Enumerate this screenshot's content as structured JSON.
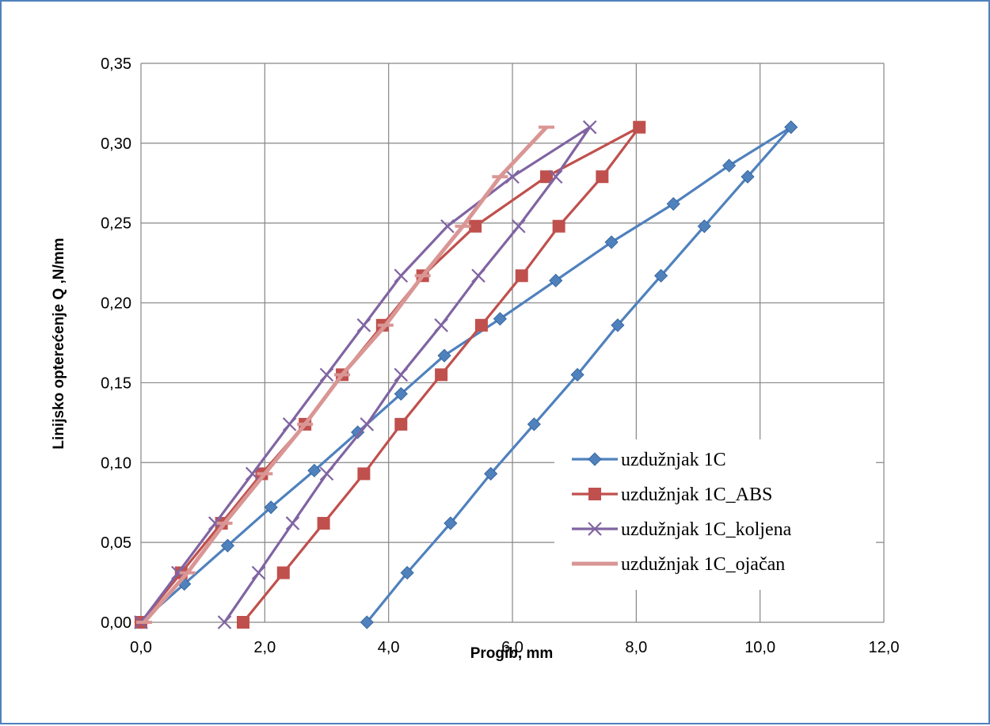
{
  "chart_data": {
    "type": "line",
    "title": "",
    "xlabel": "Progib, mm",
    "ylabel": "Linijsko opterećenje Q ,N/mm",
    "xlim": [
      0,
      12
    ],
    "ylim": [
      0,
      0.35
    ],
    "x_ticks": [
      "0,0",
      "2,0",
      "4,0",
      "6,0",
      "8,0",
      "10,0",
      "12,0"
    ],
    "y_ticks": [
      "0,00",
      "0,05",
      "0,10",
      "0,15",
      "0,20",
      "0,25",
      "0,30",
      "0,35"
    ],
    "grid": true,
    "legend_position": "right",
    "series": [
      {
        "name": "uzdužnjak 1C",
        "color": "#4f81bd",
        "marker": "diamond",
        "x": [
          0,
          0.7,
          1.4,
          2.1,
          2.8,
          3.5,
          4.2,
          4.9,
          5.8,
          6.7,
          7.6,
          8.6,
          9.5,
          10.5,
          9.8,
          9.1,
          8.4,
          7.7,
          7.05,
          6.35,
          5.65,
          5.0,
          4.3,
          3.65
        ],
        "y": [
          0,
          0.024,
          0.048,
          0.072,
          0.095,
          0.119,
          0.143,
          0.167,
          0.19,
          0.214,
          0.238,
          0.262,
          0.286,
          0.31,
          0.279,
          0.248,
          0.217,
          0.186,
          0.155,
          0.124,
          0.093,
          0.062,
          0.031,
          0
        ]
      },
      {
        "name": "uzdužnjak 1C_ABS",
        "color": "#c0504d",
        "marker": "square",
        "x": [
          0,
          0.65,
          1.3,
          1.95,
          2.65,
          3.25,
          3.9,
          4.55,
          5.4,
          6.55,
          8.05,
          7.45,
          6.75,
          6.15,
          5.5,
          4.85,
          4.2,
          3.6,
          2.95,
          2.3,
          1.65
        ],
        "y": [
          0,
          0.031,
          0.062,
          0.093,
          0.124,
          0.155,
          0.186,
          0.217,
          0.248,
          0.279,
          0.31,
          0.279,
          0.248,
          0.217,
          0.186,
          0.155,
          0.124,
          0.093,
          0.062,
          0.031,
          0
        ]
      },
      {
        "name": "uzdužnjak 1C_koljena",
        "color": "#8064a2",
        "marker": "x",
        "x": [
          0,
          0.6,
          1.2,
          1.8,
          2.4,
          3.0,
          3.6,
          4.2,
          4.95,
          6.0,
          7.25,
          6.7,
          6.1,
          5.45,
          4.85,
          4.2,
          3.65,
          3.0,
          2.45,
          1.9,
          1.35
        ],
        "y": [
          0,
          0.031,
          0.062,
          0.093,
          0.124,
          0.155,
          0.186,
          0.217,
          0.248,
          0.279,
          0.31,
          0.279,
          0.248,
          0.217,
          0.186,
          0.155,
          0.124,
          0.093,
          0.062,
          0.031,
          0
        ]
      },
      {
        "name": "uzdužnjak 1C_ojačan",
        "color": "#d99694",
        "marker": "dash",
        "x": [
          0.05,
          0.75,
          1.35,
          2.0,
          2.65,
          3.25,
          3.95,
          4.55,
          5.2,
          5.8,
          6.55
        ],
        "y": [
          0,
          0.031,
          0.062,
          0.093,
          0.124,
          0.155,
          0.186,
          0.217,
          0.248,
          0.279,
          0.31
        ]
      }
    ]
  }
}
